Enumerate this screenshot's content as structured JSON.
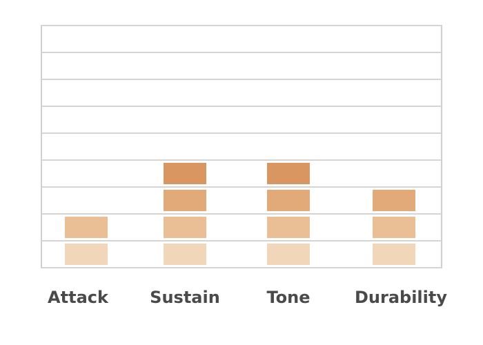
{
  "chart_data": {
    "type": "block-bar",
    "categories": [
      "Attack",
      "Sustain",
      "Tone",
      "Durability"
    ],
    "values": [
      2,
      4,
      4,
      3
    ],
    "level_colors": [
      "#f2d6ba",
      "#eabf96",
      "#e2aa78",
      "#d99661"
    ],
    "ylim": [
      0,
      9
    ],
    "yticks": [
      0,
      1,
      2,
      3,
      4,
      5,
      6,
      7,
      8,
      9
    ],
    "grid": true
  }
}
